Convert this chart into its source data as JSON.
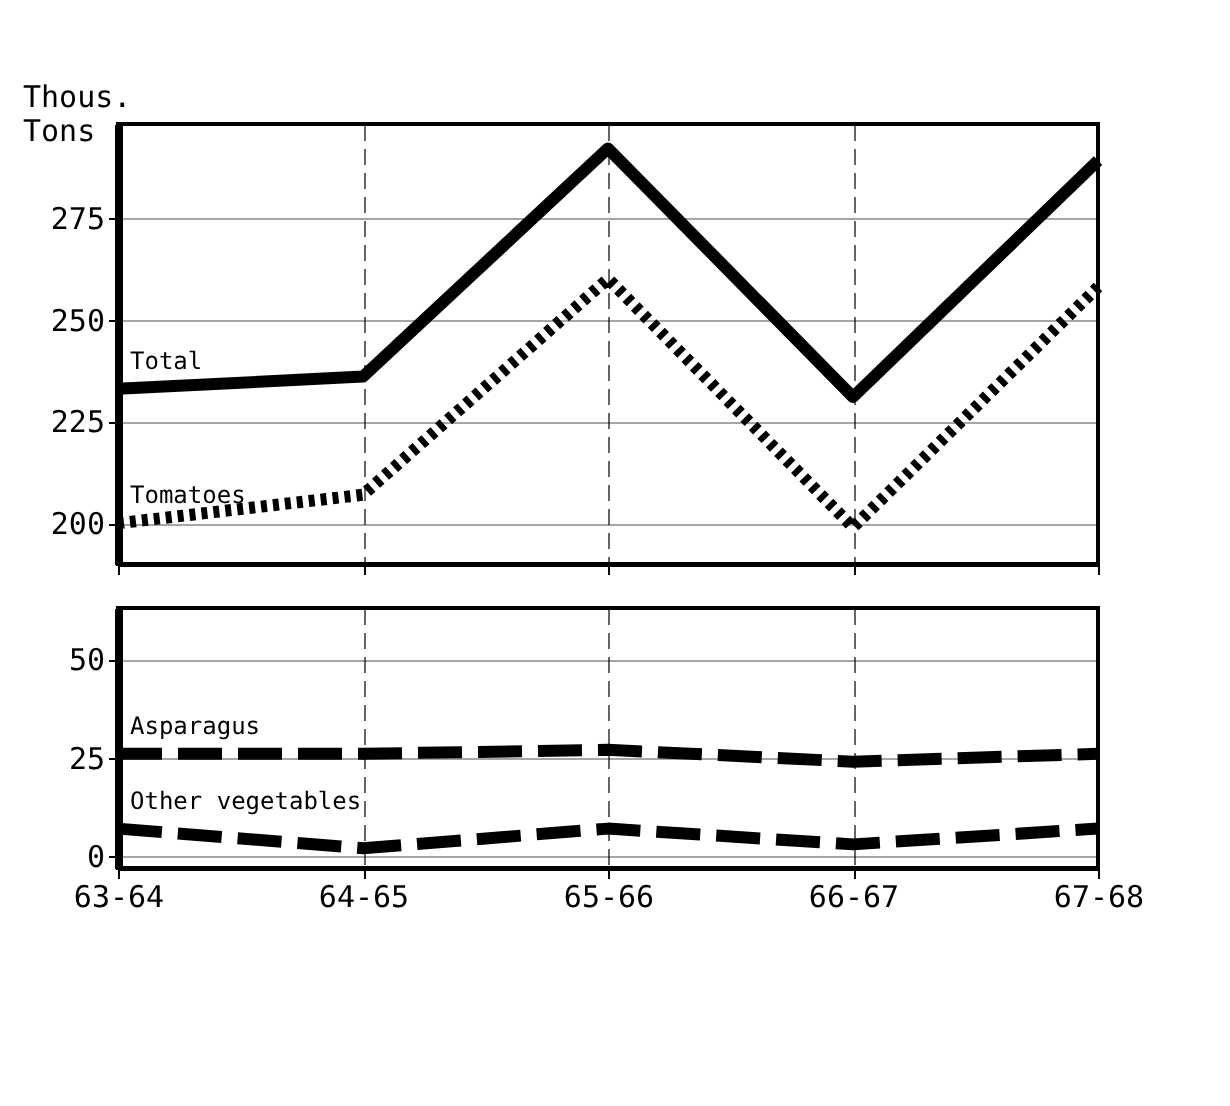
{
  "chart_data": [
    {
      "type": "line",
      "ylabel": "Thous. Tons",
      "categories": [
        "63-64",
        "64-65",
        "65-66",
        "66-67",
        "67-68"
      ],
      "series": [
        {
          "name": "Total",
          "color": "#000000",
          "line_style": "solid",
          "values": [
            233,
            236,
            292,
            231,
            289
          ]
        },
        {
          "name": "Tomatoes",
          "color": "#000000",
          "line_style": "dotted",
          "values": [
            200,
            207,
            260,
            199,
            258
          ]
        }
      ],
      "ylim": [
        190,
        298
      ],
      "yticks": [
        200,
        225,
        250,
        275
      ],
      "grid": true,
      "legend": false,
      "marker": "none",
      "tick_labels": "y"
    },
    {
      "type": "line",
      "categories": [
        "63-64",
        "64-65",
        "65-66",
        "66-67",
        "67-68"
      ],
      "series": [
        {
          "name": "Asparagus",
          "color": "#000000",
          "line_style": "dashed",
          "values": [
            26,
            26,
            27,
            24,
            26
          ]
        },
        {
          "name": "Other vegetables",
          "color": "#000000",
          "line_style": "dashed",
          "values": [
            7,
            2,
            7,
            3,
            7
          ]
        }
      ],
      "ylim": [
        -3,
        63
      ],
      "yticks": [
        0,
        25,
        50
      ],
      "grid": true,
      "legend": false,
      "marker": "none"
    }
  ]
}
